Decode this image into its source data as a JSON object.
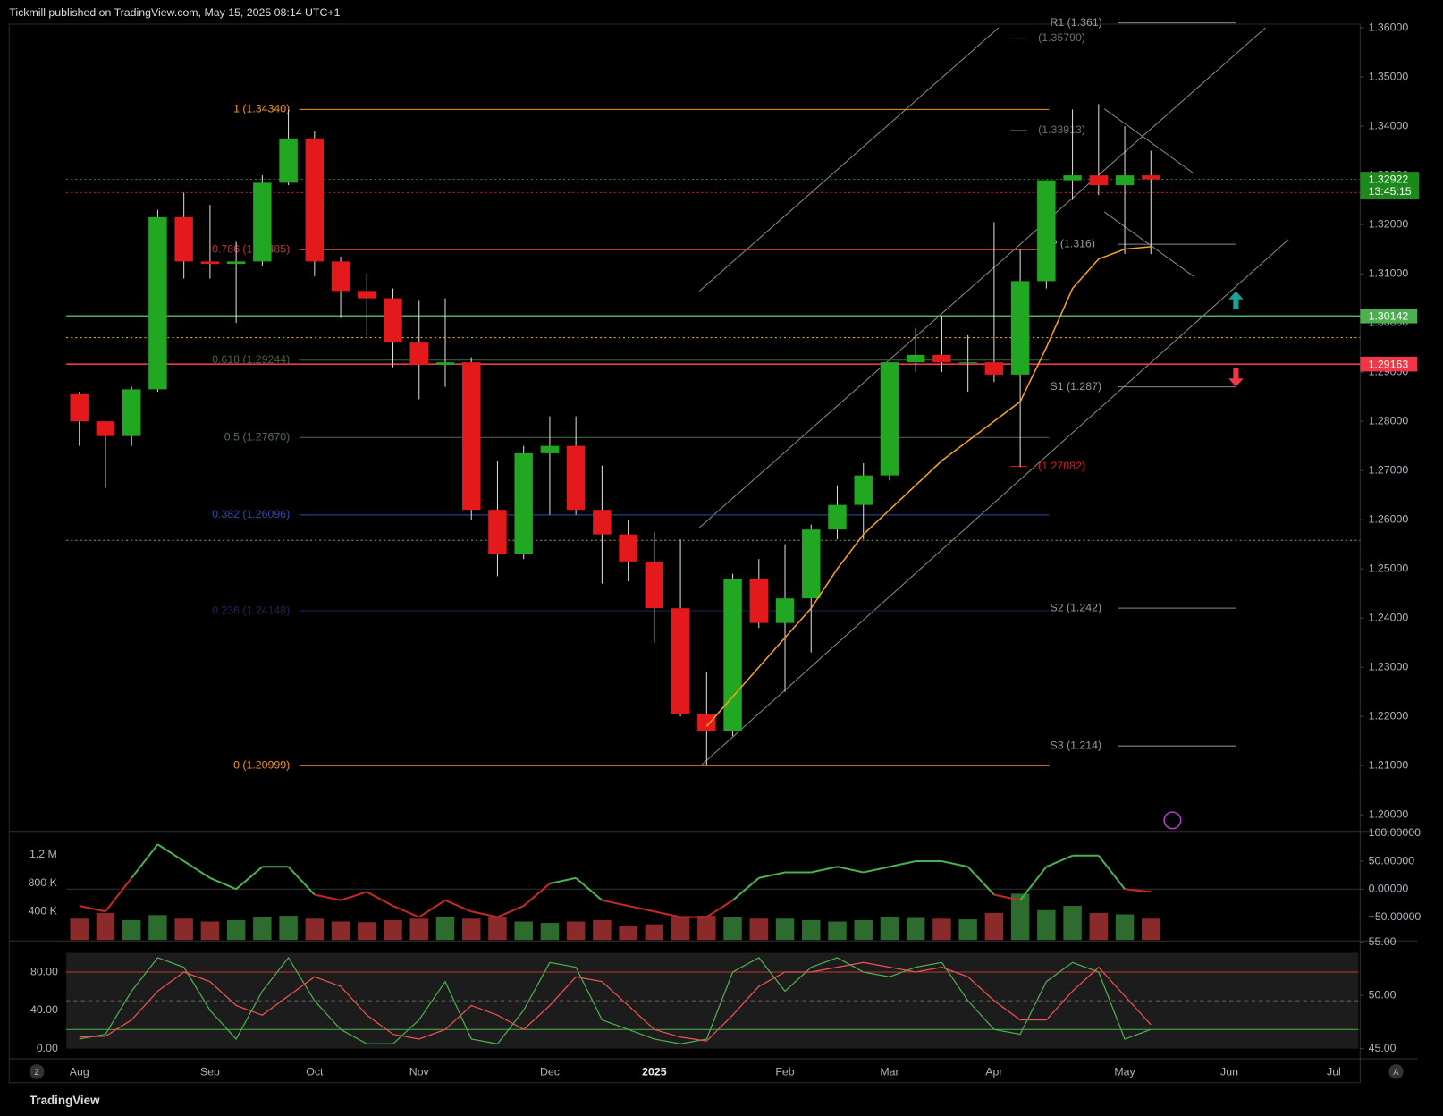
{
  "header": "Tickmill published on TradingView.com, May 15, 2025 08:14 UTC+1",
  "footer": "TradingView",
  "controls": [
    "Z",
    "A"
  ],
  "chart_data": [
    {
      "type": "candlestick",
      "categories": [
        "Aug",
        null,
        null,
        null,
        null,
        "Sep",
        null,
        null,
        null,
        "Oct",
        null,
        null,
        null,
        "Nov",
        null,
        null,
        null,
        null,
        "Dec",
        null,
        null,
        null,
        "2025",
        null,
        null,
        null,
        null,
        "Feb",
        null,
        null,
        null,
        "Mar",
        null,
        null,
        null,
        "Apr",
        null,
        null,
        null,
        null,
        "May",
        null,
        null,
        null,
        "Jun",
        null,
        null,
        null,
        "Jul",
        null
      ],
      "open": [
        1.2855,
        1.28,
        1.277,
        1.2865,
        1.3215,
        1.3125,
        1.312,
        1.3125,
        1.3285,
        1.3375,
        1.3125,
        1.3065,
        1.305,
        1.296,
        1.2915,
        1.292,
        1.262,
        1.253,
        1.2735,
        1.275,
        1.262,
        1.257,
        1.2515,
        1.242,
        1.2205,
        1.217,
        1.248,
        1.239,
        1.244,
        1.258,
        1.263,
        1.269,
        1.292,
        1.2935,
        1.292,
        1.292,
        1.2895,
        1.3085,
        1.329,
        1.33,
        1.328,
        1.33,
        null,
        null,
        null,
        null,
        null,
        null,
        null,
        null
      ],
      "high": [
        1.286,
        1.28,
        1.287,
        1.323,
        1.3265,
        1.324,
        1.3165,
        1.33,
        1.3434,
        1.339,
        1.3135,
        1.31,
        1.307,
        1.3045,
        1.305,
        1.293,
        1.272,
        1.275,
        1.281,
        1.281,
        1.271,
        1.26,
        1.2575,
        1.256,
        1.229,
        1.249,
        1.252,
        1.255,
        1.259,
        1.267,
        1.2715,
        1.292,
        1.299,
        1.3015,
        1.2975,
        1.3205,
        1.315,
        1.329,
        1.3434,
        1.3445,
        1.34,
        1.335,
        null,
        null,
        null,
        null,
        null,
        null,
        null,
        null
      ],
      "low": [
        1.275,
        1.2665,
        1.275,
        1.286,
        1.309,
        1.309,
        1.3,
        1.3115,
        1.328,
        1.3095,
        1.301,
        1.2975,
        1.291,
        1.2845,
        1.287,
        1.26,
        1.2485,
        1.252,
        1.261,
        1.261,
        1.247,
        1.2475,
        1.235,
        1.22,
        1.21,
        1.216,
        1.238,
        1.225,
        1.233,
        1.256,
        1.256,
        1.268,
        1.29,
        1.29,
        1.286,
        1.288,
        1.2708,
        1.307,
        1.325,
        1.326,
        1.314,
        1.314,
        null,
        null,
        null,
        null,
        null,
        null,
        null,
        null
      ],
      "close": [
        1.28,
        1.277,
        1.2865,
        1.3215,
        1.3125,
        1.312,
        1.3125,
        1.3285,
        1.3375,
        1.3125,
        1.3065,
        1.305,
        1.296,
        1.2915,
        1.292,
        1.262,
        1.253,
        1.2735,
        1.275,
        1.262,
        1.257,
        1.2515,
        1.242,
        1.2205,
        1.217,
        1.248,
        1.239,
        1.244,
        1.258,
        1.263,
        1.269,
        1.292,
        1.2935,
        1.292,
        1.292,
        1.2895,
        1.3085,
        1.329,
        1.33,
        1.328,
        1.33,
        1.3292,
        null,
        null,
        null,
        null,
        null,
        null,
        null,
        null
      ],
      "up_color": "#22a722",
      "down_color": "#e3191c",
      "moving_average": {
        "color": "#f7a21b",
        "values": [
          null,
          null,
          null,
          null,
          null,
          null,
          null,
          null,
          null,
          null,
          null,
          null,
          null,
          null,
          null,
          null,
          null,
          null,
          null,
          null,
          null,
          null,
          null,
          null,
          1.218,
          1.224,
          1.23,
          1.236,
          1.242,
          1.25,
          1.257,
          1.262,
          1.267,
          1.272,
          1.276,
          1.28,
          1.284,
          1.295,
          1.307,
          1.313,
          1.315,
          1.3155,
          null,
          null,
          null,
          null,
          null,
          null,
          null,
          null
        ]
      },
      "ylim": [
        1.2,
        1.36
      ],
      "yticks": [
        {
          "value": 1.2,
          "label": "1.20000"
        },
        {
          "value": 1.21,
          "label": "1.21000"
        },
        {
          "value": 1.22,
          "label": "1.22000"
        },
        {
          "value": 1.23,
          "label": "1.23000"
        },
        {
          "value": 1.24,
          "label": "1.24000"
        },
        {
          "value": 1.25,
          "label": "1.25000"
        },
        {
          "value": 1.26,
          "label": "1.26000"
        },
        {
          "value": 1.27,
          "label": "1.27000"
        },
        {
          "value": 1.28,
          "label": "1.28000"
        },
        {
          "value": 1.29,
          "label": "1.29000"
        },
        {
          "value": 1.3,
          "label": "1.30000"
        },
        {
          "value": 1.31,
          "label": "1.31000"
        },
        {
          "value": 1.32,
          "label": "1.32000"
        },
        {
          "value": 1.33,
          "label": "1.33000"
        },
        {
          "value": 1.34,
          "label": "1.34000"
        },
        {
          "value": 1.35,
          "label": "1.35000"
        },
        {
          "value": 1.36,
          "label": "1.36000"
        }
      ],
      "grid": false,
      "fib_levels": [
        {
          "label": "1 (1.34340)",
          "value": 1.3434,
          "color": "#f7931a"
        },
        {
          "label": "0.786 (1.31485)",
          "value": 1.31485,
          "color": "#b23a3a"
        },
        {
          "label": "0.618 (1.29244)",
          "value": 1.29244,
          "color": "#3f6b3f"
        },
        {
          "label": "0.5 (1.27670)",
          "value": 1.2767,
          "color": "#556b55"
        },
        {
          "label": "0.382 (1.26096)",
          "value": 1.26096,
          "color": "#2a4fa8"
        },
        {
          "label": "0.236 (1.24148)",
          "value": 1.24148,
          "color": "#1c2a55"
        },
        {
          "label": "0 (1.20999)",
          "value": 1.20999,
          "color": "#f7931a"
        }
      ],
      "pivots": [
        {
          "label": "R1 (1.361)",
          "value": 1.361
        },
        {
          "label": "P (1.316)",
          "value": 1.316
        },
        {
          "label": "S1 (1.287)",
          "value": 1.287
        },
        {
          "label": "S2 (1.242)",
          "value": 1.242
        },
        {
          "label": "S3 (1.214)",
          "value": 1.214
        }
      ],
      "annotations": [
        {
          "label": "(1.35790)",
          "value": 1.3579,
          "color": "#6f6f6f"
        },
        {
          "label": "(1.33913)",
          "value": 1.33913,
          "color": "#6f6f6f"
        },
        {
          "label": "(1.27082)",
          "value": 1.27082,
          "color": "#e3191c"
        }
      ],
      "dotted_levels": [
        {
          "value": 1.3292,
          "color": "#2e7d32"
        },
        {
          "value": 1.3265,
          "color": "#e3191c"
        },
        {
          "value": 1.297,
          "color": "#f7c31a"
        },
        {
          "value": 1.2558,
          "color": "#7cb342"
        }
      ],
      "price_tags": [
        {
          "value": 1.30142,
          "color": "#4caf50"
        },
        {
          "value": 1.29163,
          "color": "#f23645"
        }
      ],
      "last_price": {
        "value": 1.32922,
        "countdown": "13:45:15",
        "color": "#1b8a1b"
      }
    },
    {
      "type": "bar",
      "series": [
        {
          "values": [
            300000,
            380000,
            280000,
            350000,
            300000,
            260000,
            280000,
            320000,
            340000,
            300000,
            260000,
            250000,
            280000,
            300000,
            330000,
            300000,
            320000,
            260000,
            240000,
            260000,
            280000,
            200000,
            220000,
            330000,
            340000,
            320000,
            300000,
            300000,
            280000,
            260000,
            280000,
            320000,
            310000,
            300000,
            290000,
            380000,
            650000,
            420000,
            480000,
            380000,
            360000,
            300000,
            null,
            null,
            null,
            null,
            null,
            null,
            null,
            null
          ]
        },
        {
          "values": [
            -30,
            -40,
            20,
            80,
            50,
            20,
            0,
            40,
            40,
            -10,
            -20,
            -5,
            -30,
            -50,
            -20,
            -40,
            -50,
            -30,
            10,
            20,
            -20,
            -30,
            -40,
            -50,
            -50,
            -20,
            20,
            30,
            30,
            40,
            30,
            40,
            50,
            50,
            40,
            -10,
            -20,
            40,
            60,
            60,
            0,
            -5,
            null,
            null,
            null,
            null,
            null,
            null,
            null,
            null
          ],
          "axis": "y2"
        }
      ],
      "ylim": [
        0,
        1500000
      ],
      "yticks": [
        {
          "value": 400000,
          "label": "400 K"
        },
        {
          "value": 800000,
          "label": "800 K"
        },
        {
          "value": 1200000,
          "label": "1.2 M"
        }
      ],
      "y2lim": [
        -91,
        100
      ],
      "y2ticks": [
        {
          "value": -50,
          "label": "−50.00000"
        },
        {
          "value": 0,
          "label": "0.00000"
        },
        {
          "value": 50,
          "label": "50.00000"
        },
        {
          "value": 100,
          "label": "100.00000"
        }
      ]
    },
    {
      "type": "line",
      "series": [
        {
          "color": "#4caf50",
          "values": [
            10,
            15,
            60,
            95,
            85,
            40,
            10,
            60,
            95,
            50,
            20,
            5,
            5,
            30,
            70,
            10,
            5,
            40,
            90,
            85,
            30,
            20,
            10,
            5,
            10,
            80,
            95,
            60,
            85,
            95,
            80,
            75,
            85,
            90,
            50,
            20,
            15,
            70,
            90,
            80,
            10,
            20,
            null,
            null,
            null,
            null,
            null,
            null,
            null,
            null
          ]
        },
        {
          "color": "#ef5350",
          "values": [
            12,
            13,
            30,
            60,
            80,
            70,
            45,
            35,
            55,
            75,
            65,
            35,
            15,
            10,
            20,
            45,
            35,
            20,
            45,
            75,
            70,
            45,
            20,
            12,
            8,
            35,
            65,
            80,
            80,
            85,
            90,
            85,
            80,
            85,
            75,
            50,
            30,
            30,
            60,
            85,
            55,
            25,
            null,
            null,
            null,
            null,
            null,
            null,
            null,
            null
          ]
        }
      ],
      "ylim": [
        0,
        100
      ],
      "yticks": [
        {
          "value": 0,
          "label": "0.00"
        },
        {
          "value": 40,
          "label": "40.00"
        },
        {
          "value": 80,
          "label": "80.00"
        }
      ],
      "y2lim": [
        45,
        54
      ],
      "y2ticks": [
        {
          "value": 45,
          "label": "45.00"
        },
        {
          "value": 50,
          "label": "50.00"
        },
        {
          "value": 55,
          "label": "55.00"
        }
      ],
      "levels": [
        {
          "value": 80,
          "color": "#c0392b"
        },
        {
          "value": 50,
          "color": "#666666"
        },
        {
          "value": 20,
          "color": "#4caf50"
        }
      ]
    }
  ]
}
